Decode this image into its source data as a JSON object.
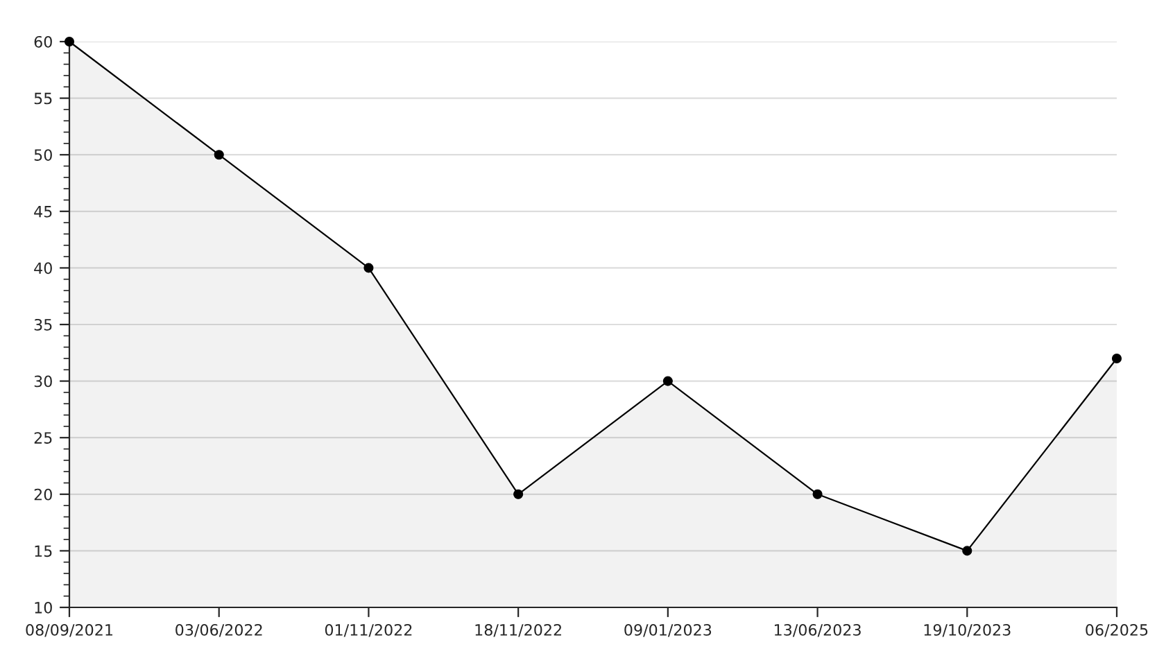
{
  "chart_data": {
    "type": "area",
    "categories": [
      "08/09/2021",
      "03/06/2022",
      "01/11/2022",
      "18/11/2022",
      "09/01/2023",
      "13/06/2023",
      "19/10/2023",
      "06/2025"
    ],
    "series": [
      {
        "color": "#000000",
        "values": [
          60,
          50,
          40,
          20,
          30,
          20,
          15,
          32
        ]
      }
    ],
    "ylim": [
      10,
      60
    ],
    "yticks": [
      10,
      15,
      20,
      25,
      30,
      35,
      40,
      45,
      50,
      55,
      60
    ],
    "grid": "y",
    "marker": "circle",
    "line_style": "solid"
  }
}
